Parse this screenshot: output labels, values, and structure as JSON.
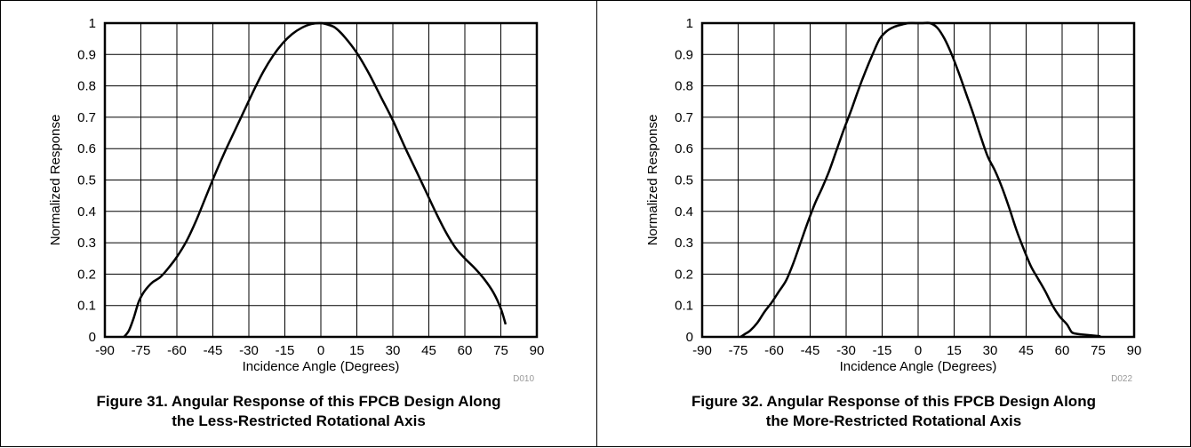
{
  "chart_data": [
    {
      "type": "line",
      "title": "Figure 31. Angular Response of this FPCB Design Along the Less-Restricted Rotational Axis",
      "caption_lines": [
        "Figure 31. Angular Response of this FPCB Design Along",
        "the Less-Restricted Rotational Axis"
      ],
      "xlabel": "Incidence Angle (Degrees)",
      "ylabel": "Normalized Response",
      "figure_code": "D010",
      "xlim": [
        -90,
        90
      ],
      "ylim": [
        0,
        1
      ],
      "xticks": [
        -90,
        -75,
        -60,
        -45,
        -30,
        -15,
        0,
        15,
        30,
        45,
        60,
        75,
        90
      ],
      "yticks": [
        0,
        0.1,
        0.2,
        0.3,
        0.4,
        0.5,
        0.6,
        0.7,
        0.8,
        0.9,
        1
      ],
      "grid": true,
      "series": [
        {
          "x": [
            -82,
            -80,
            -78,
            -76,
            -74,
            -72,
            -70,
            -67,
            -64,
            -60,
            -56,
            -52,
            -48,
            -44,
            -40,
            -36,
            -32,
            -28,
            -24,
            -20,
            -16,
            -12,
            -8,
            -4,
            0,
            3,
            6,
            10,
            15,
            20,
            25,
            30,
            35,
            40,
            44,
            48,
            52,
            56,
            60,
            64,
            68,
            72,
            75,
            77
          ],
          "y": [
            0,
            0.02,
            0.06,
            0.11,
            0.14,
            0.16,
            0.175,
            0.19,
            0.215,
            0.255,
            0.305,
            0.37,
            0.445,
            0.52,
            0.59,
            0.655,
            0.72,
            0.785,
            0.845,
            0.895,
            0.935,
            0.965,
            0.985,
            0.997,
            1.0,
            0.995,
            0.985,
            0.955,
            0.905,
            0.84,
            0.765,
            0.69,
            0.605,
            0.525,
            0.46,
            0.395,
            0.335,
            0.285,
            0.25,
            0.22,
            0.185,
            0.14,
            0.09,
            0.04
          ]
        }
      ]
    },
    {
      "type": "line",
      "title": "Figure 32. Angular Response of this FPCB Design Along the More-Restricted Rotational Axis",
      "caption_lines": [
        "Figure 32. Angular Response of this FPCB Design Along",
        "the More-Restricted Rotational Axis"
      ],
      "xlabel": "Incidence Angle (Degrees)",
      "ylabel": "Normalized Response",
      "figure_code": "D022",
      "xlim": [
        -90,
        90
      ],
      "ylim": [
        0,
        1
      ],
      "xticks": [
        -90,
        -75,
        -60,
        -45,
        -30,
        -15,
        0,
        15,
        30,
        45,
        60,
        75,
        90
      ],
      "yticks": [
        0,
        0.1,
        0.2,
        0.3,
        0.4,
        0.5,
        0.6,
        0.7,
        0.8,
        0.9,
        1
      ],
      "grid": true,
      "series": [
        {
          "x": [
            -74,
            -72,
            -70,
            -67,
            -64,
            -61,
            -58,
            -55,
            -52,
            -49,
            -46,
            -43,
            -40,
            -37,
            -34,
            -31,
            -28,
            -25,
            -22,
            -19,
            -16,
            -13,
            -10,
            -7,
            -4,
            -1,
            2,
            5,
            8,
            11,
            14,
            17,
            20,
            23,
            26,
            29,
            32,
            35,
            38,
            41,
            44,
            47,
            50,
            53,
            56,
            59,
            62,
            64,
            66,
            68,
            72,
            76
          ],
          "y": [
            0,
            0.01,
            0.02,
            0.045,
            0.08,
            0.11,
            0.145,
            0.18,
            0.235,
            0.3,
            0.365,
            0.425,
            0.475,
            0.53,
            0.595,
            0.66,
            0.72,
            0.785,
            0.845,
            0.9,
            0.95,
            0.975,
            0.988,
            0.995,
            1.0,
            1.0,
            1.0,
            1.0,
            0.985,
            0.95,
            0.9,
            0.84,
            0.775,
            0.71,
            0.64,
            0.575,
            0.53,
            0.475,
            0.41,
            0.34,
            0.28,
            0.225,
            0.185,
            0.145,
            0.1,
            0.065,
            0.04,
            0.015,
            0.01,
            0.008,
            0.005,
            0.002
          ]
        }
      ]
    }
  ]
}
